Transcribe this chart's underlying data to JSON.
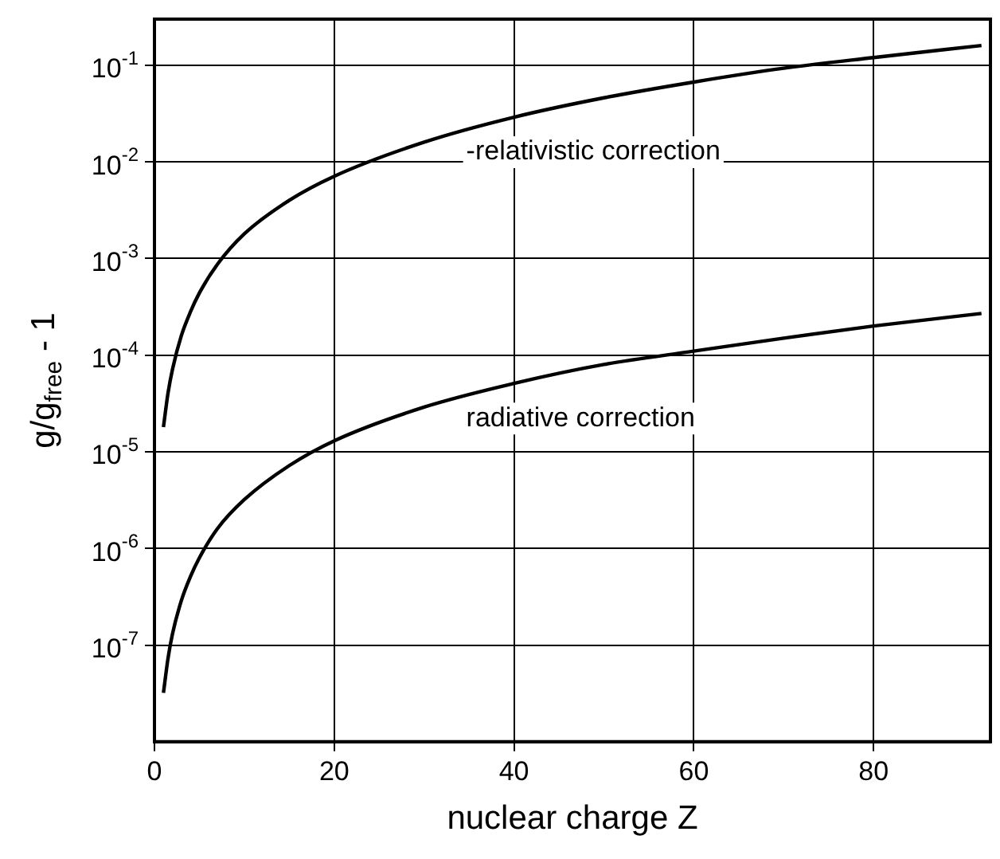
{
  "chart_data": {
    "type": "line",
    "xlabel": "nuclear charge Z",
    "ylabel": "g/g$_{free}$ - 1",
    "xlim": [
      0,
      93
    ],
    "xticks": [
      0,
      20,
      40,
      60,
      80
    ],
    "ylim": [
      1e-08,
      0.3
    ],
    "log": true,
    "yticks": [
      {
        "value": 1e-07,
        "label": "10$^{-7}$"
      },
      {
        "value": 1e-06,
        "label": "10$^{-6}$"
      },
      {
        "value": 1e-05,
        "label": "10$^{-5}$"
      },
      {
        "value": 0.0001,
        "label": "10$^{-4}$"
      },
      {
        "value": 0.001,
        "label": "10$^{-3}$"
      },
      {
        "value": 0.01,
        "label": "10$^{-2}$"
      },
      {
        "value": 0.1,
        "label": "10$^{-1}$"
      }
    ],
    "grid": true,
    "legend": false,
    "marker": "none",
    "line_style": "solid",
    "x": [
      1,
      1.5,
      2,
      3,
      4,
      5,
      7,
      10,
      15,
      20,
      30,
      40,
      50,
      60,
      70,
      80,
      92
    ],
    "series": [
      {
        "name": "-relativistic correction",
        "color": "#000000",
        "values": [
          1.8e-05,
          4e-05,
          7.1e-05,
          0.00016,
          0.00028,
          0.00044,
          0.00087,
          0.0018,
          0.004,
          0.0071,
          0.016,
          0.029,
          0.046,
          0.067,
          0.093,
          0.12,
          0.16
        ]
      },
      {
        "name": "radiative correction",
        "color": "#000000",
        "values": [
          3.2e-08,
          7.2e-08,
          1.3e-07,
          2.9e-07,
          5.1e-07,
          8e-07,
          1.6e-06,
          3.2e-06,
          7.2e-06,
          1.3e-05,
          2.9e-05,
          5.1e-05,
          8e-05,
          0.00011,
          0.00015,
          0.0002,
          0.00027
        ]
      }
    ]
  }
}
